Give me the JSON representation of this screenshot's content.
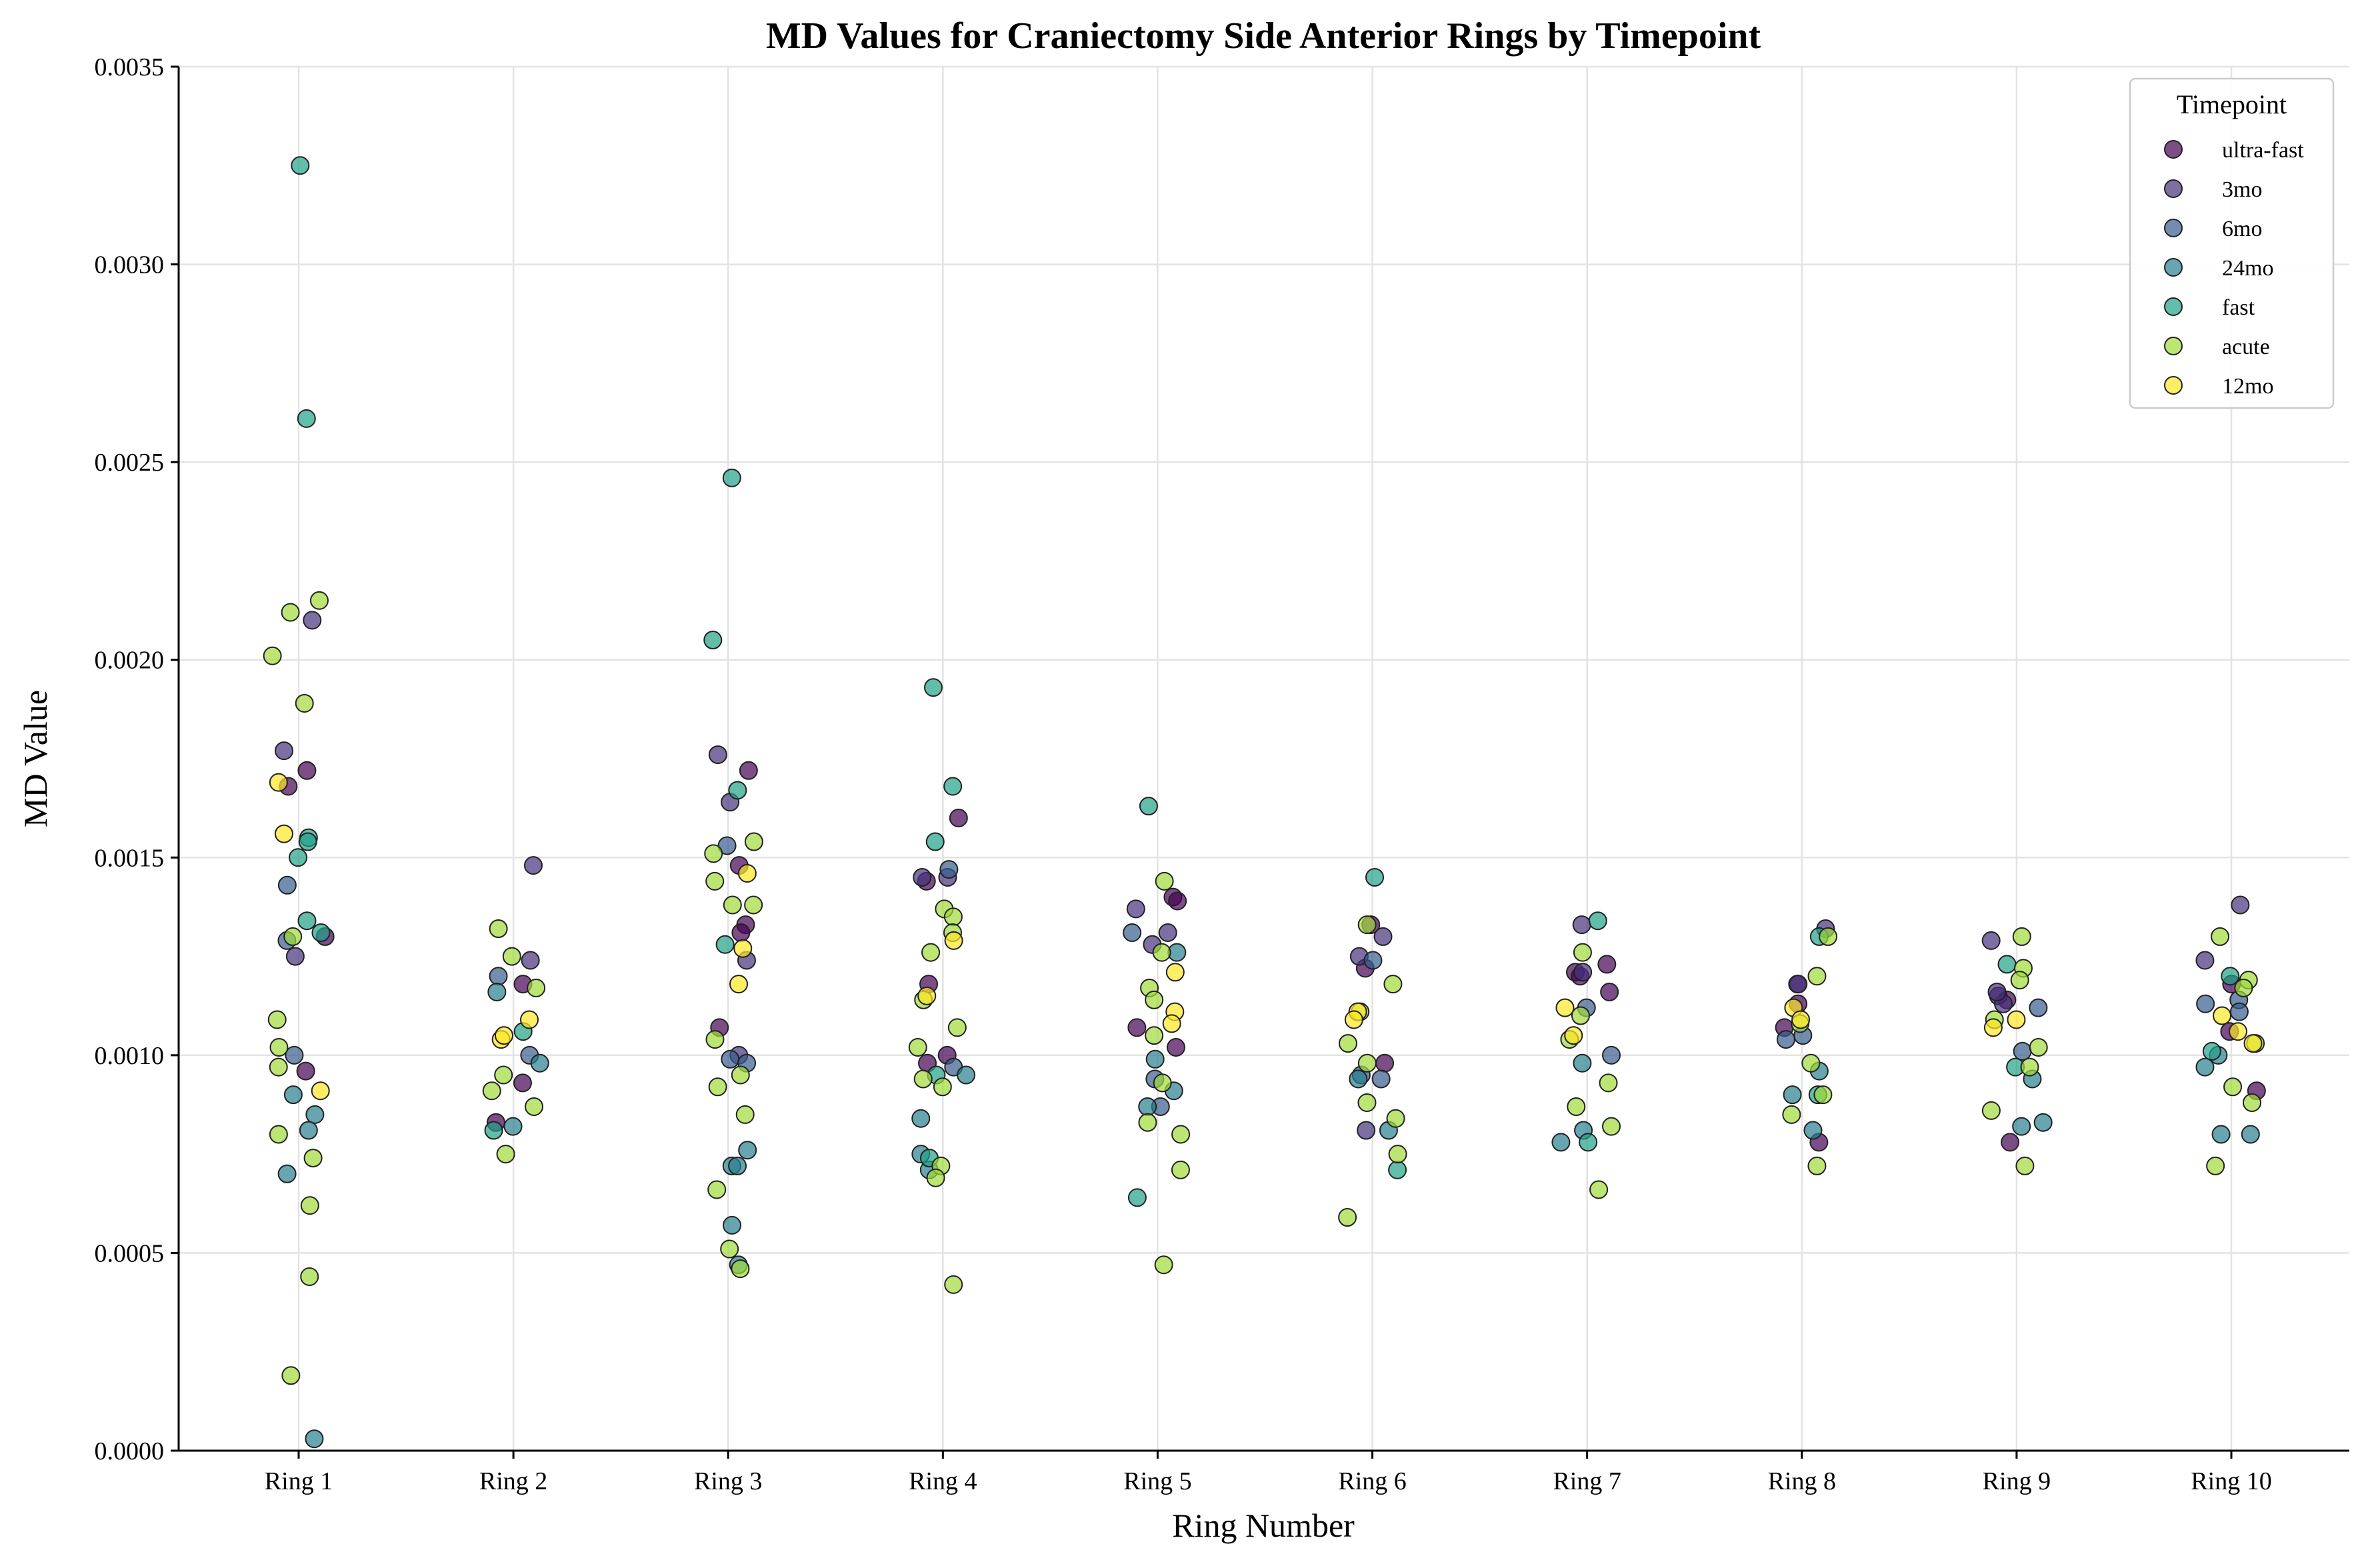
{
  "chart_data": {
    "type": "scatter",
    "title": "MD Values for Craniectomy Side Anterior Rings by Timepoint",
    "xlabel": "Ring Number",
    "ylabel": "MD Value",
    "categories": [
      "Ring 1",
      "Ring 2",
      "Ring 3",
      "Ring 4",
      "Ring 5",
      "Ring 6",
      "Ring 7",
      "Ring 8",
      "Ring 9",
      "Ring 10"
    ],
    "ylim": [
      0.0,
      0.0035
    ],
    "yticks": [
      "0.0000",
      "0.0005",
      "0.0010",
      "0.0015",
      "0.0020",
      "0.0025",
      "0.0030",
      "0.0035"
    ],
    "ytick_values": [
      0.0,
      0.0005,
      0.001,
      0.0015,
      0.002,
      0.0025,
      0.003,
      0.0035
    ],
    "grid": true,
    "legend": {
      "title": "Timepoint",
      "position": "top-right"
    },
    "series": [
      {
        "name": "ultra-fast",
        "color": "#440154",
        "points": [
          [
            0,
            0.00172
          ],
          [
            0,
            0.00168
          ],
          [
            0,
            0.00096
          ],
          [
            0,
            0.0013
          ],
          [
            1,
            0.00118
          ],
          [
            1,
            0.00093
          ],
          [
            1,
            0.00083
          ],
          [
            2,
            0.00172
          ],
          [
            2,
            0.00148
          ],
          [
            2,
            0.00133
          ],
          [
            2,
            0.00131
          ],
          [
            2,
            0.00107
          ],
          [
            3,
            0.0016
          ],
          [
            3,
            0.00144
          ],
          [
            3,
            0.001
          ],
          [
            3,
            0.00118
          ],
          [
            3,
            0.00098
          ],
          [
            4,
            0.0014
          ],
          [
            4,
            0.00139
          ],
          [
            4,
            0.00102
          ],
          [
            4,
            0.00107
          ],
          [
            5,
            0.00133
          ],
          [
            5,
            0.00098
          ],
          [
            5,
            0.00122
          ],
          [
            6,
            0.00121
          ],
          [
            6,
            0.0012
          ],
          [
            6,
            0.00116
          ],
          [
            6,
            0.00123
          ],
          [
            7,
            0.00118
          ],
          [
            7,
            0.00113
          ],
          [
            7,
            0.00078
          ],
          [
            7,
            0.00107
          ],
          [
            8,
            0.00115
          ],
          [
            8,
            0.00114
          ],
          [
            8,
            0.00078
          ],
          [
            9,
            0.00118
          ],
          [
            9,
            0.00091
          ],
          [
            9,
            0.00106
          ]
        ]
      },
      {
        "name": "3mo",
        "color": "#46327e",
        "points": [
          [
            0,
            0.0021
          ],
          [
            0,
            0.00177
          ],
          [
            0,
            0.00125
          ],
          [
            1,
            0.00148
          ],
          [
            1,
            0.00124
          ],
          [
            2,
            0.00176
          ],
          [
            2,
            0.00164
          ],
          [
            2,
            0.00124
          ],
          [
            2,
            0.001
          ],
          [
            3,
            0.00145
          ],
          [
            3,
            0.00145
          ],
          [
            4,
            0.00137
          ],
          [
            4,
            0.00131
          ],
          [
            4,
            0.00128
          ],
          [
            5,
            0.0013
          ],
          [
            5,
            0.00125
          ],
          [
            5,
            0.00081
          ],
          [
            6,
            0.00133
          ],
          [
            6,
            0.00121
          ],
          [
            7,
            0.00132
          ],
          [
            7,
            0.00118
          ],
          [
            8,
            0.00129
          ],
          [
            8,
            0.00113
          ],
          [
            8,
            0.00116
          ],
          [
            9,
            0.00138
          ],
          [
            9,
            0.00124
          ]
        ]
      },
      {
        "name": "6mo",
        "color": "#365c8d",
        "points": [
          [
            0,
            0.00143
          ],
          [
            0,
            0.00129
          ],
          [
            0,
            0.001
          ],
          [
            1,
            0.0012
          ],
          [
            1,
            0.001
          ],
          [
            2,
            0.00153
          ],
          [
            2,
            0.00099
          ],
          [
            2,
            0.00098
          ],
          [
            3,
            0.00147
          ],
          [
            3,
            0.00097
          ],
          [
            4,
            0.00131
          ],
          [
            4,
            0.00087
          ],
          [
            4,
            0.00094
          ],
          [
            5,
            0.00124
          ],
          [
            5,
            0.00094
          ],
          [
            5,
            0.00095
          ],
          [
            6,
            0.00112
          ],
          [
            6,
            0.001
          ],
          [
            7,
            0.00104
          ],
          [
            7,
            0.00105
          ],
          [
            8,
            0.00112
          ],
          [
            8,
            0.00101
          ],
          [
            9,
            0.00113
          ],
          [
            9,
            0.00114
          ],
          [
            9,
            0.00111
          ]
        ]
      },
      {
        "name": "24mo",
        "color": "#277f8e",
        "points": [
          [
            0,
            0.0009
          ],
          [
            0,
            0.00085
          ],
          [
            0,
            0.00081
          ],
          [
            0,
            0.0007
          ],
          [
            0,
            3e-05
          ],
          [
            1,
            0.00098
          ],
          [
            1,
            0.00082
          ],
          [
            1,
            0.00116
          ],
          [
            2,
            0.00072
          ],
          [
            2,
            0.00072
          ],
          [
            2,
            0.00076
          ],
          [
            2,
            0.00057
          ],
          [
            2,
            0.00047
          ],
          [
            3,
            0.00084
          ],
          [
            3,
            0.00095
          ],
          [
            3,
            0.00075
          ],
          [
            3,
            0.00071
          ],
          [
            4,
            0.00099
          ],
          [
            4,
            0.00091
          ],
          [
            4,
            0.00087
          ],
          [
            4,
            0.00126
          ],
          [
            5,
            0.00094
          ],
          [
            5,
            0.00081
          ],
          [
            6,
            0.00098
          ],
          [
            6,
            0.00081
          ],
          [
            6,
            0.00078
          ],
          [
            7,
            0.0009
          ],
          [
            7,
            0.00081
          ],
          [
            7,
            0.00096
          ],
          [
            8,
            0.00094
          ],
          [
            8,
            0.00083
          ],
          [
            8,
            0.00082
          ],
          [
            9,
            0.0008
          ],
          [
            9,
            0.0008
          ],
          [
            9,
            0.00097
          ],
          [
            9,
            0.001
          ]
        ]
      },
      {
        "name": "fast",
        "color": "#1fa187",
        "points": [
          [
            0,
            0.00325
          ],
          [
            0,
            0.00261
          ],
          [
            0,
            0.00155
          ],
          [
            0,
            0.00154
          ],
          [
            0,
            0.0015
          ],
          [
            0,
            0.00134
          ],
          [
            0,
            0.00131
          ],
          [
            1,
            0.00106
          ],
          [
            1,
            0.00081
          ],
          [
            2,
            0.00246
          ],
          [
            2,
            0.00205
          ],
          [
            2,
            0.00167
          ],
          [
            2,
            0.00128
          ],
          [
            3,
            0.00193
          ],
          [
            3,
            0.00168
          ],
          [
            3,
            0.00154
          ],
          [
            3,
            0.00095
          ],
          [
            3,
            0.00074
          ],
          [
            4,
            0.00163
          ],
          [
            4,
            0.00064
          ],
          [
            5,
            0.00145
          ],
          [
            5,
            0.00071
          ],
          [
            6,
            0.00134
          ],
          [
            6,
            0.00078
          ],
          [
            7,
            0.0013
          ],
          [
            7,
            0.0009
          ],
          [
            8,
            0.00123
          ],
          [
            8,
            0.00097
          ],
          [
            9,
            0.0012
          ],
          [
            9,
            0.00101
          ]
        ]
      },
      {
        "name": "acute",
        "color": "#a0da39",
        "points": [
          [
            0,
            0.00215
          ],
          [
            0,
            0.00212
          ],
          [
            0,
            0.00201
          ],
          [
            0,
            0.00189
          ],
          [
            0,
            0.0013
          ],
          [
            0,
            0.00109
          ],
          [
            0,
            0.00102
          ],
          [
            0,
            0.00097
          ],
          [
            0,
            0.0008
          ],
          [
            0,
            0.00074
          ],
          [
            0,
            0.00062
          ],
          [
            0,
            0.00044
          ],
          [
            0,
            0.00019
          ],
          [
            1,
            0.00132
          ],
          [
            1,
            0.00125
          ],
          [
            1,
            0.00117
          ],
          [
            1,
            0.00095
          ],
          [
            1,
            0.00091
          ],
          [
            1,
            0.00087
          ],
          [
            1,
            0.00075
          ],
          [
            2,
            0.00154
          ],
          [
            2,
            0.00151
          ],
          [
            2,
            0.00144
          ],
          [
            2,
            0.00138
          ],
          [
            2,
            0.00138
          ],
          [
            2,
            0.00104
          ],
          [
            2,
            0.00095
          ],
          [
            2,
            0.00092
          ],
          [
            2,
            0.00085
          ],
          [
            2,
            0.00066
          ],
          [
            2,
            0.00051
          ],
          [
            2,
            0.00046
          ],
          [
            3,
            0.00137
          ],
          [
            3,
            0.00135
          ],
          [
            3,
            0.00131
          ],
          [
            3,
            0.00126
          ],
          [
            3,
            0.00114
          ],
          [
            3,
            0.00107
          ],
          [
            3,
            0.00102
          ],
          [
            3,
            0.00094
          ],
          [
            3,
            0.00092
          ],
          [
            3,
            0.00072
          ],
          [
            3,
            0.00069
          ],
          [
            3,
            0.00042
          ],
          [
            4,
            0.00144
          ],
          [
            4,
            0.00126
          ],
          [
            4,
            0.00117
          ],
          [
            4,
            0.00114
          ],
          [
            4,
            0.00105
          ],
          [
            4,
            0.00093
          ],
          [
            4,
            0.00083
          ],
          [
            4,
            0.0008
          ],
          [
            4,
            0.00071
          ],
          [
            4,
            0.00047
          ],
          [
            5,
            0.00133
          ],
          [
            5,
            0.00118
          ],
          [
            5,
            0.00111
          ],
          [
            5,
            0.00103
          ],
          [
            5,
            0.00098
          ],
          [
            5,
            0.00088
          ],
          [
            5,
            0.00084
          ],
          [
            5,
            0.00075
          ],
          [
            5,
            0.00059
          ],
          [
            6,
            0.00126
          ],
          [
            6,
            0.0011
          ],
          [
            6,
            0.00104
          ],
          [
            6,
            0.00093
          ],
          [
            6,
            0.00087
          ],
          [
            6,
            0.00082
          ],
          [
            6,
            0.00066
          ],
          [
            7,
            0.0013
          ],
          [
            7,
            0.0012
          ],
          [
            7,
            0.00108
          ],
          [
            7,
            0.00098
          ],
          [
            7,
            0.0009
          ],
          [
            7,
            0.00085
          ],
          [
            7,
            0.00072
          ],
          [
            8,
            0.0013
          ],
          [
            8,
            0.00122
          ],
          [
            8,
            0.00119
          ],
          [
            8,
            0.00109
          ],
          [
            8,
            0.00102
          ],
          [
            8,
            0.00097
          ],
          [
            8,
            0.00086
          ],
          [
            8,
            0.00072
          ],
          [
            9,
            0.0013
          ],
          [
            9,
            0.00119
          ],
          [
            9,
            0.00117
          ],
          [
            9,
            0.00103
          ],
          [
            9,
            0.00092
          ],
          [
            9,
            0.00088
          ],
          [
            9,
            0.00072
          ]
        ]
      },
      {
        "name": "12mo",
        "color": "#fde725",
        "points": [
          [
            0,
            0.00169
          ],
          [
            0,
            0.00156
          ],
          [
            0,
            0.00091
          ],
          [
            1,
            0.00109
          ],
          [
            1,
            0.00104
          ],
          [
            1,
            0.00105
          ],
          [
            2,
            0.00146
          ],
          [
            2,
            0.00127
          ],
          [
            2,
            0.00118
          ],
          [
            3,
            0.00129
          ],
          [
            3,
            0.00115
          ],
          [
            4,
            0.00121
          ],
          [
            4,
            0.00111
          ],
          [
            4,
            0.00108
          ],
          [
            5,
            0.00111
          ],
          [
            5,
            0.00109
          ],
          [
            6,
            0.00112
          ],
          [
            6,
            0.00105
          ],
          [
            7,
            0.00112
          ],
          [
            7,
            0.00109
          ],
          [
            8,
            0.00109
          ],
          [
            8,
            0.00107
          ],
          [
            9,
            0.0011
          ],
          [
            9,
            0.00106
          ],
          [
            9,
            0.00103
          ]
        ]
      }
    ]
  }
}
